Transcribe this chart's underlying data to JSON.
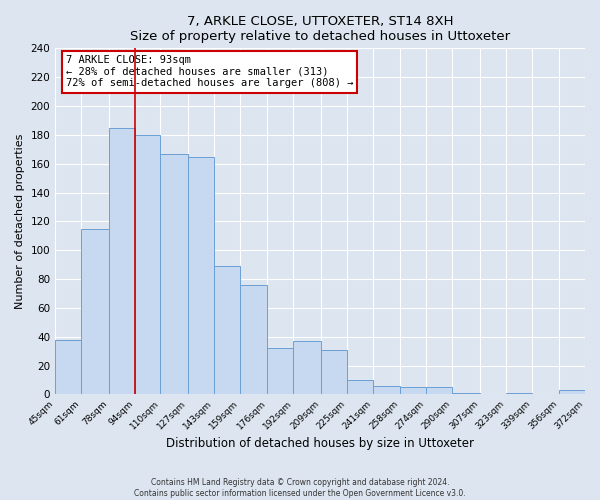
{
  "title": "7, ARKLE CLOSE, UTTOXETER, ST14 8XH",
  "subtitle": "Size of property relative to detached houses in Uttoxeter",
  "xlabel": "Distribution of detached houses by size in Uttoxeter",
  "ylabel": "Number of detached properties",
  "bar_edges": [
    45,
    61,
    78,
    94,
    110,
    127,
    143,
    159,
    176,
    192,
    209,
    225,
    241,
    258,
    274,
    290,
    307,
    323,
    339,
    356,
    372
  ],
  "bar_heights": [
    38,
    115,
    185,
    180,
    167,
    165,
    89,
    76,
    32,
    37,
    31,
    10,
    6,
    5,
    5,
    1,
    0,
    1,
    0,
    3
  ],
  "bar_color": "#c6d9f1",
  "bar_edge_color": "#6b9fd4",
  "vline_x": 94,
  "vline_color": "#cc0000",
  "annotation_title": "7 ARKLE CLOSE: 93sqm",
  "annotation_line1": "← 28% of detached houses are smaller (313)",
  "annotation_line2": "72% of semi-detached houses are larger (808) →",
  "annotation_box_color": "#cc0000",
  "ylim": [
    0,
    240
  ],
  "yticks": [
    0,
    20,
    40,
    60,
    80,
    100,
    120,
    140,
    160,
    180,
    200,
    220,
    240
  ],
  "tick_labels": [
    "45sqm",
    "61sqm",
    "78sqm",
    "94sqm",
    "110sqm",
    "127sqm",
    "143sqm",
    "159sqm",
    "176sqm",
    "192sqm",
    "209sqm",
    "225sqm",
    "241sqm",
    "258sqm",
    "274sqm",
    "290sqm",
    "307sqm",
    "323sqm",
    "339sqm",
    "356sqm",
    "372sqm"
  ],
  "background_color": "#dde6f0",
  "plot_bg_color": "#dde6f0",
  "footer_line1": "Contains HM Land Registry data © Crown copyright and database right 2024.",
  "footer_line2": "Contains public sector information licensed under the Open Government Licence v3.0."
}
